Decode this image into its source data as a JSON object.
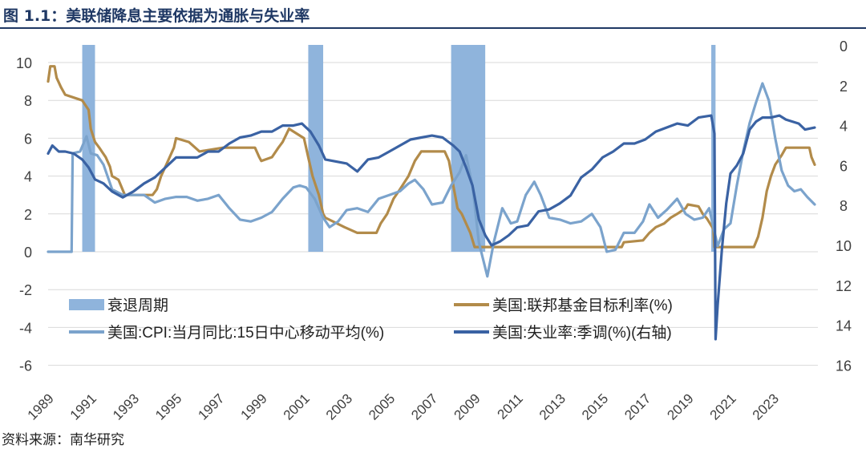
{
  "title": "图 1.1：美联储降息主要依据为通胀与失业率",
  "source": "资料来源：南华研究",
  "colors": {
    "recession": "#8fb4dc",
    "fed_funds": "#b28b4a",
    "cpi": "#7ba3cc",
    "unemployment": "#3a62a3",
    "title": "#1f3864",
    "grid": "#d9d9d9"
  },
  "chart_data": {
    "type": "line",
    "x_tick_labels": [
      "1989",
      "1991",
      "1993",
      "1995",
      "1997",
      "1999",
      "2001",
      "2003",
      "2005",
      "2007",
      "2009",
      "2011",
      "2013",
      "2015",
      "2017",
      "2019",
      "2021",
      "2023"
    ],
    "xlim": [
      1989,
      2025.1
    ],
    "y_left": {
      "ticks": [
        "10",
        "8",
        "6",
        "4",
        "2",
        "0",
        "-2",
        "-4",
        "-6"
      ],
      "range": [
        -6,
        11
      ]
    },
    "y_right": {
      "ticks": [
        "0",
        "2",
        "4",
        "6",
        "8",
        "10",
        "12",
        "14",
        "16"
      ],
      "range": [
        0,
        16
      ],
      "inverted": true
    },
    "grid": "horizontal",
    "legend": [
      {
        "label": "衰退周期",
        "style": "band",
        "series": "recession"
      },
      {
        "label": "美国:联邦基金目标利率(%)",
        "style": "line",
        "series": "fed_funds"
      },
      {
        "label": "美国:CPI:当月同比:15日中心移动平均(%)",
        "style": "line",
        "series": "cpi"
      },
      {
        "label": "美国:失业率:季调(%)(右轴)",
        "style": "line",
        "series": "unemployment"
      }
    ],
    "recessions": [
      [
        1990.6,
        1991.2
      ],
      [
        2001.2,
        2001.9
      ],
      [
        2007.9,
        2009.5
      ],
      [
        2020.1,
        2020.3
      ]
    ],
    "fed_funds": [
      [
        1989.0,
        9.0
      ],
      [
        1989.1,
        9.8
      ],
      [
        1989.3,
        9.8
      ],
      [
        1989.4,
        9.2
      ],
      [
        1989.6,
        8.7
      ],
      [
        1989.8,
        8.3
      ],
      [
        1990.6,
        8.0
      ],
      [
        1990.9,
        7.5
      ],
      [
        1991.0,
        6.5
      ],
      [
        1991.2,
        5.8
      ],
      [
        1991.4,
        5.5
      ],
      [
        1991.7,
        5.0
      ],
      [
        1991.9,
        4.5
      ],
      [
        1992.0,
        4.0
      ],
      [
        1992.3,
        3.8
      ],
      [
        1992.6,
        3.0
      ],
      [
        1993.9,
        3.0
      ],
      [
        1994.1,
        3.3
      ],
      [
        1994.3,
        4.0
      ],
      [
        1994.5,
        4.5
      ],
      [
        1994.7,
        5.0
      ],
      [
        1994.9,
        5.5
      ],
      [
        1995.0,
        6.0
      ],
      [
        1995.6,
        5.8
      ],
      [
        1995.9,
        5.5
      ],
      [
        1996.1,
        5.3
      ],
      [
        1997.2,
        5.5
      ],
      [
        1998.7,
        5.5
      ],
      [
        1998.9,
        5.0
      ],
      [
        1999.0,
        4.8
      ],
      [
        1999.5,
        5.0
      ],
      [
        1999.8,
        5.5
      ],
      [
        2000.0,
        5.8
      ],
      [
        2000.3,
        6.5
      ],
      [
        2001.0,
        6.0
      ],
      [
        2001.2,
        5.0
      ],
      [
        2001.4,
        4.0
      ],
      [
        2001.7,
        3.0
      ],
      [
        2001.9,
        2.0
      ],
      [
        2002.0,
        1.8
      ],
      [
        2002.9,
        1.3
      ],
      [
        2003.5,
        1.0
      ],
      [
        2004.4,
        1.0
      ],
      [
        2004.6,
        1.5
      ],
      [
        2004.9,
        2.0
      ],
      [
        2005.2,
        2.8
      ],
      [
        2005.5,
        3.3
      ],
      [
        2005.9,
        4.0
      ],
      [
        2006.2,
        4.8
      ],
      [
        2006.5,
        5.3
      ],
      [
        2007.6,
        5.3
      ],
      [
        2007.8,
        4.8
      ],
      [
        2008.0,
        3.5
      ],
      [
        2008.2,
        2.3
      ],
      [
        2008.4,
        2.0
      ],
      [
        2008.8,
        1.0
      ],
      [
        2009.0,
        0.25
      ],
      [
        2015.9,
        0.25
      ],
      [
        2016.0,
        0.5
      ],
      [
        2016.9,
        0.6
      ],
      [
        2017.2,
        1.0
      ],
      [
        2017.5,
        1.3
      ],
      [
        2017.9,
        1.5
      ],
      [
        2018.2,
        1.8
      ],
      [
        2018.5,
        2.0
      ],
      [
        2018.9,
        2.3
      ],
      [
        2019.0,
        2.5
      ],
      [
        2019.5,
        2.4
      ],
      [
        2019.7,
        2.0
      ],
      [
        2019.9,
        1.75
      ],
      [
        2020.2,
        1.2
      ],
      [
        2020.25,
        0.25
      ],
      [
        2022.1,
        0.25
      ],
      [
        2022.3,
        0.8
      ],
      [
        2022.5,
        1.8
      ],
      [
        2022.7,
        3.2
      ],
      [
        2022.9,
        4.0
      ],
      [
        2023.1,
        4.6
      ],
      [
        2023.4,
        5.1
      ],
      [
        2023.6,
        5.5
      ],
      [
        2024.7,
        5.5
      ],
      [
        2024.8,
        5.0
      ],
      [
        2024.95,
        4.6
      ]
    ],
    "cpi": [
      [
        1989.0,
        0
      ],
      [
        1990.1,
        0
      ],
      [
        1990.15,
        5.2
      ],
      [
        1990.5,
        5.3
      ],
      [
        1990.8,
        6.1
      ],
      [
        1991.0,
        5.2
      ],
      [
        1991.3,
        5.1
      ],
      [
        1991.6,
        4.6
      ],
      [
        1992.0,
        3.3
      ],
      [
        1992.5,
        3.0
      ],
      [
        1993.0,
        3.0
      ],
      [
        1993.5,
        3.0
      ],
      [
        1994.0,
        2.6
      ],
      [
        1994.5,
        2.8
      ],
      [
        1995.0,
        2.9
      ],
      [
        1995.5,
        2.9
      ],
      [
        1996.0,
        2.7
      ],
      [
        1996.5,
        2.8
      ],
      [
        1997.0,
        3.0
      ],
      [
        1997.5,
        2.3
      ],
      [
        1998.0,
        1.7
      ],
      [
        1998.5,
        1.6
      ],
      [
        1999.0,
        1.8
      ],
      [
        1999.5,
        2.1
      ],
      [
        2000.0,
        2.8
      ],
      [
        2000.5,
        3.4
      ],
      [
        2000.8,
        3.5
      ],
      [
        2001.1,
        3.4
      ],
      [
        2001.5,
        2.8
      ],
      [
        2001.9,
        1.8
      ],
      [
        2002.2,
        1.3
      ],
      [
        2002.6,
        1.6
      ],
      [
        2003.0,
        2.2
      ],
      [
        2003.5,
        2.3
      ],
      [
        2004.0,
        2.1
      ],
      [
        2004.5,
        2.8
      ],
      [
        2005.0,
        3.0
      ],
      [
        2005.5,
        3.2
      ],
      [
        2005.9,
        3.6
      ],
      [
        2006.2,
        3.8
      ],
      [
        2006.6,
        3.3
      ],
      [
        2007.0,
        2.5
      ],
      [
        2007.5,
        2.6
      ],
      [
        2007.9,
        3.5
      ],
      [
        2008.3,
        4.2
      ],
      [
        2008.6,
        5.1
      ],
      [
        2008.9,
        3.5
      ],
      [
        2009.2,
        0.5
      ],
      [
        2009.6,
        -1.3
      ],
      [
        2009.9,
        0.5
      ],
      [
        2010.3,
        2.3
      ],
      [
        2010.7,
        1.5
      ],
      [
        2011.0,
        1.6
      ],
      [
        2011.4,
        3.0
      ],
      [
        2011.8,
        3.7
      ],
      [
        2012.1,
        3.0
      ],
      [
        2012.5,
        1.8
      ],
      [
        2013.0,
        1.7
      ],
      [
        2013.5,
        1.5
      ],
      [
        2014.0,
        1.6
      ],
      [
        2014.5,
        2.0
      ],
      [
        2014.9,
        1.3
      ],
      [
        2015.2,
        0.0
      ],
      [
        2015.6,
        0.1
      ],
      [
        2016.0,
        1.0
      ],
      [
        2016.5,
        1.0
      ],
      [
        2016.9,
        1.6
      ],
      [
        2017.2,
        2.5
      ],
      [
        2017.6,
        1.8
      ],
      [
        2018.0,
        2.2
      ],
      [
        2018.5,
        2.8
      ],
      [
        2018.9,
        2.0
      ],
      [
        2019.3,
        1.7
      ],
      [
        2019.7,
        1.8
      ],
      [
        2020.0,
        2.3
      ],
      [
        2020.4,
        0.3
      ],
      [
        2020.7,
        1.2
      ],
      [
        2021.0,
        1.5
      ],
      [
        2021.3,
        3.5
      ],
      [
        2021.6,
        5.3
      ],
      [
        2021.9,
        6.8
      ],
      [
        2022.2,
        7.9
      ],
      [
        2022.5,
        8.9
      ],
      [
        2022.8,
        8.0
      ],
      [
        2023.1,
        6.0
      ],
      [
        2023.4,
        4.3
      ],
      [
        2023.7,
        3.5
      ],
      [
        2024.0,
        3.2
      ],
      [
        2024.3,
        3.3
      ],
      [
        2024.6,
        2.9
      ],
      [
        2024.95,
        2.5
      ]
    ],
    "unemployment": [
      [
        1989.0,
        5.4
      ],
      [
        1989.2,
        5.0
      ],
      [
        1989.5,
        5.3
      ],
      [
        1989.8,
        5.3
      ],
      [
        1990.2,
        5.4
      ],
      [
        1990.6,
        5.7
      ],
      [
        1990.9,
        6.1
      ],
      [
        1991.2,
        6.7
      ],
      [
        1991.6,
        6.9
      ],
      [
        1992.0,
        7.3
      ],
      [
        1992.5,
        7.6
      ],
      [
        1993.0,
        7.3
      ],
      [
        1993.5,
        6.9
      ],
      [
        1994.0,
        6.6
      ],
      [
        1994.5,
        6.1
      ],
      [
        1995.0,
        5.6
      ],
      [
        1995.5,
        5.6
      ],
      [
        1996.0,
        5.6
      ],
      [
        1996.5,
        5.3
      ],
      [
        1997.0,
        5.3
      ],
      [
        1997.5,
        4.9
      ],
      [
        1998.0,
        4.6
      ],
      [
        1998.5,
        4.5
      ],
      [
        1999.0,
        4.3
      ],
      [
        1999.5,
        4.3
      ],
      [
        2000.0,
        4.0
      ],
      [
        2000.5,
        4.0
      ],
      [
        2000.9,
        3.9
      ],
      [
        2001.3,
        4.3
      ],
      [
        2001.7,
        5.0
      ],
      [
        2002.0,
        5.7
      ],
      [
        2002.5,
        5.8
      ],
      [
        2003.0,
        5.9
      ],
      [
        2003.5,
        6.3
      ],
      [
        2004.0,
        5.7
      ],
      [
        2004.5,
        5.6
      ],
      [
        2005.0,
        5.3
      ],
      [
        2005.5,
        5.0
      ],
      [
        2006.0,
        4.7
      ],
      [
        2006.5,
        4.6
      ],
      [
        2007.0,
        4.5
      ],
      [
        2007.5,
        4.6
      ],
      [
        2008.0,
        5.0
      ],
      [
        2008.3,
        5.3
      ],
      [
        2008.6,
        6.1
      ],
      [
        2008.9,
        7.0
      ],
      [
        2009.2,
        8.7
      ],
      [
        2009.5,
        9.5
      ],
      [
        2009.8,
        10.0
      ],
      [
        2010.2,
        9.8
      ],
      [
        2010.6,
        9.5
      ],
      [
        2011.0,
        9.1
      ],
      [
        2011.5,
        9.0
      ],
      [
        2012.0,
        8.3
      ],
      [
        2012.5,
        8.2
      ],
      [
        2013.0,
        7.9
      ],
      [
        2013.5,
        7.5
      ],
      [
        2014.0,
        6.6
      ],
      [
        2014.5,
        6.2
      ],
      [
        2015.0,
        5.6
      ],
      [
        2015.5,
        5.3
      ],
      [
        2016.0,
        4.9
      ],
      [
        2016.5,
        4.9
      ],
      [
        2017.0,
        4.7
      ],
      [
        2017.5,
        4.3
      ],
      [
        2018.0,
        4.1
      ],
      [
        2018.5,
        3.9
      ],
      [
        2019.0,
        4.0
      ],
      [
        2019.5,
        3.6
      ],
      [
        2020.1,
        3.5
      ],
      [
        2020.25,
        4.4
      ],
      [
        2020.3,
        14.7
      ],
      [
        2020.4,
        13.0
      ],
      [
        2020.6,
        10.2
      ],
      [
        2020.8,
        7.9
      ],
      [
        2021.0,
        6.4
      ],
      [
        2021.3,
        6.0
      ],
      [
        2021.6,
        5.4
      ],
      [
        2021.9,
        4.2
      ],
      [
        2022.2,
        3.8
      ],
      [
        2022.5,
        3.6
      ],
      [
        2022.9,
        3.6
      ],
      [
        2023.3,
        3.5
      ],
      [
        2023.6,
        3.7
      ],
      [
        2023.9,
        3.8
      ],
      [
        2024.2,
        3.9
      ],
      [
        2024.5,
        4.2
      ],
      [
        2024.95,
        4.1
      ]
    ]
  }
}
